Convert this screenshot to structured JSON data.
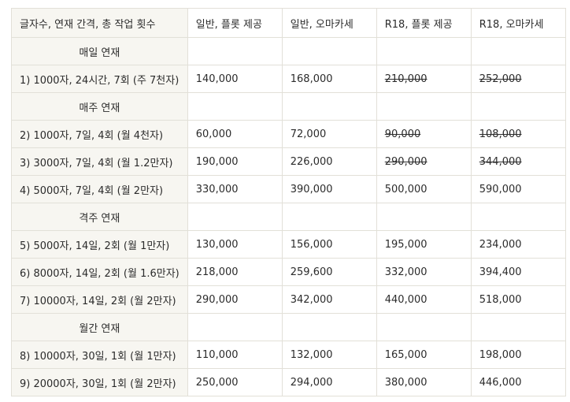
{
  "table": {
    "headers": [
      "글자수, 연재 간격, 총 작업 횟수",
      "일반, 플롯 제공",
      "일반, 오마카세",
      "R18, 플롯 제공",
      "R18, 오마카세"
    ],
    "rows": [
      {
        "type": "section",
        "label": "매일 연재"
      },
      {
        "type": "data",
        "label": "1) 1000자, 24시간, 7회 (주 7천자)",
        "cells": [
          {
            "value": "140,000",
            "struck": false
          },
          {
            "value": "168,000",
            "struck": false
          },
          {
            "value": "210,000",
            "struck": true
          },
          {
            "value": "252,000",
            "struck": true
          }
        ]
      },
      {
        "type": "section",
        "label": "매주 연재"
      },
      {
        "type": "data",
        "label": "2) 1000자, 7일, 4회 (월 4천자)",
        "cells": [
          {
            "value": "60,000",
            "struck": false
          },
          {
            "value": "72,000",
            "struck": false
          },
          {
            "value": "90,000",
            "struck": true
          },
          {
            "value": "108,000",
            "struck": true
          }
        ]
      },
      {
        "type": "data",
        "label": "3) 3000자, 7일, 4회 (월 1.2만자)",
        "cells": [
          {
            "value": "190,000",
            "struck": false
          },
          {
            "value": "226,000",
            "struck": false
          },
          {
            "value": "290,000",
            "struck": true
          },
          {
            "value": "344,000",
            "struck": true
          }
        ]
      },
      {
        "type": "data",
        "label": "4) 5000자, 7일, 4회 (월 2만자)",
        "cells": [
          {
            "value": "330,000",
            "struck": false
          },
          {
            "value": "390,000",
            "struck": false
          },
          {
            "value": "500,000",
            "struck": false
          },
          {
            "value": "590,000",
            "struck": false
          }
        ]
      },
      {
        "type": "section",
        "label": "격주 연재"
      },
      {
        "type": "data",
        "label": "5) 5000자, 14일, 2회 (월 1만자)",
        "cells": [
          {
            "value": "130,000",
            "struck": false
          },
          {
            "value": "156,000",
            "struck": false
          },
          {
            "value": "195,000",
            "struck": false
          },
          {
            "value": "234,000",
            "struck": false
          }
        ]
      },
      {
        "type": "data",
        "label": "6) 8000자, 14일, 2회 (월 1.6만자)",
        "cells": [
          {
            "value": "218,000",
            "struck": false
          },
          {
            "value": "259,600",
            "struck": false
          },
          {
            "value": "332,000",
            "struck": false
          },
          {
            "value": "394,400",
            "struck": false
          }
        ]
      },
      {
        "type": "data",
        "label": "7) 10000자, 14일, 2회 (월 2만자)",
        "cells": [
          {
            "value": "290,000",
            "struck": false
          },
          {
            "value": "342,000",
            "struck": false
          },
          {
            "value": "440,000",
            "struck": false
          },
          {
            "value": "518,000",
            "struck": false
          }
        ]
      },
      {
        "type": "section",
        "label": "월간 연재"
      },
      {
        "type": "data",
        "label": "8) 10000자, 30일, 1회 (월 1만자)",
        "cells": [
          {
            "value": "110,000",
            "struck": false
          },
          {
            "value": "132,000",
            "struck": false
          },
          {
            "value": "165,000",
            "struck": false
          },
          {
            "value": "198,000",
            "struck": false
          }
        ]
      },
      {
        "type": "data",
        "label": "9) 20000자, 30일, 1회 (월 2만자)",
        "cells": [
          {
            "value": "250,000",
            "struck": false
          },
          {
            "value": "294,000",
            "struck": false
          },
          {
            "value": "380,000",
            "struck": false
          },
          {
            "value": "446,000",
            "struck": false
          }
        ]
      }
    ]
  }
}
